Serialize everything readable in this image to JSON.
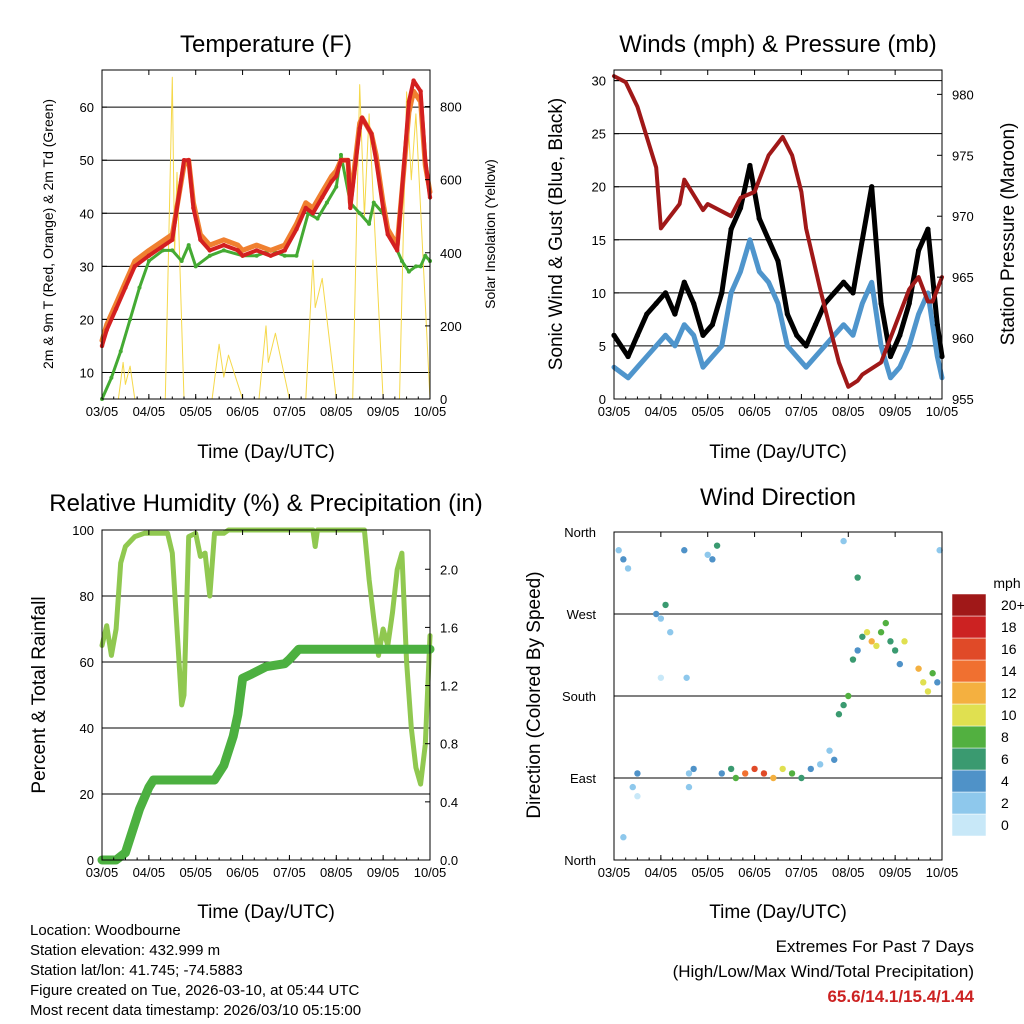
{
  "footer": {
    "location": "Location: Woodbourne",
    "elevation": "Station elevation: 432.999 m",
    "latlon": "Station lat/lon: 41.745; -74.5883",
    "created": "Figure created on Tue, 2026-03-10, at 05:44 UTC",
    "recent": "Most recent data timestamp: 2026/03/10 05:15:00",
    "extremes_title": "Extremes For Past 7 Days",
    "extremes_subtitle": "(High/Low/Max Wind/Total Precipitation)",
    "extremes_values": "65.6/14.1/15.4/1.44"
  },
  "colors": {
    "temp2m": "#d42020",
    "temp9m": "#f08030",
    "dewpoint": "#44aa33",
    "solar": "#f5d84a",
    "wind": "#4f95cc",
    "gust": "#000000",
    "pressure": "#a01818",
    "rh": "#90c850",
    "precip": "#4cb040"
  },
  "chart_data": [
    {
      "type": "line",
      "title": "Temperature (F)",
      "xlabel": "Time (Day/UTC)",
      "ylabel": "2m & 9m T (Red, Orange) & 2m Td (Green)",
      "y2label": "Solar Insolation (Yellow)",
      "xticks": [
        "03/05",
        "04/05",
        "05/05",
        "06/05",
        "07/05",
        "08/05",
        "09/05",
        "10/05"
      ],
      "xlim": [
        0,
        7
      ],
      "ylim": [
        5,
        67
      ],
      "yticks": [
        10,
        20,
        30,
        40,
        50,
        60
      ],
      "y2lim": [
        0,
        900
      ],
      "y2ticks": [
        0,
        200,
        400,
        600,
        800
      ],
      "series": [
        {
          "name": "2m T",
          "color": "#d42020",
          "x": [
            0,
            0.1,
            0.3,
            0.5,
            0.7,
            1.0,
            1.5,
            1.75,
            1.85,
            1.95,
            2.1,
            2.3,
            2.6,
            2.9,
            3.0,
            3.3,
            3.6,
            3.9,
            4.15,
            4.35,
            4.5,
            4.7,
            4.9,
            5.0,
            5.1,
            5.25,
            5.3,
            5.5,
            5.55,
            5.75,
            5.85,
            6.0,
            6.1,
            6.3,
            6.55,
            6.65,
            6.8,
            6.9,
            7.0
          ],
          "y": [
            15,
            18,
            22,
            26,
            30,
            32,
            35,
            50,
            50,
            41,
            35,
            33,
            34,
            33,
            32,
            33,
            32,
            33,
            37,
            41,
            40,
            43,
            46,
            47,
            50,
            50,
            41,
            56,
            58,
            55,
            50,
            41,
            36,
            33,
            61,
            65,
            63,
            50,
            43
          ]
        },
        {
          "name": "9m T",
          "color": "#f08030",
          "x": [
            0,
            0.1,
            0.3,
            0.5,
            0.7,
            1.0,
            1.5,
            1.75,
            1.85,
            1.95,
            2.1,
            2.3,
            2.6,
            2.9,
            3.0,
            3.3,
            3.6,
            3.9,
            4.15,
            4.35,
            4.5,
            4.7,
            4.9,
            5.0,
            5.1,
            5.25,
            5.3,
            5.5,
            5.55,
            5.75,
            5.85,
            6.0,
            6.1,
            6.3,
            6.55,
            6.65,
            6.8,
            6.9,
            7.0
          ],
          "y": [
            16,
            19,
            23,
            27,
            31,
            33,
            36,
            49,
            50,
            42,
            36,
            34,
            35,
            34,
            33,
            34,
            33,
            34,
            38,
            42,
            41,
            44,
            47,
            48,
            50,
            50,
            42,
            57,
            58,
            55,
            51,
            42,
            37,
            34,
            59,
            63,
            61,
            49,
            44
          ]
        },
        {
          "name": "2m Td",
          "color": "#44aa33",
          "x": [
            0,
            0.2,
            0.4,
            0.6,
            0.8,
            1.0,
            1.3,
            1.5,
            1.7,
            1.85,
            2.0,
            2.3,
            2.6,
            3.0,
            3.3,
            3.6,
            3.9,
            4.15,
            4.4,
            4.6,
            4.8,
            5.0,
            5.1,
            5.3,
            5.5,
            5.7,
            5.8,
            6.0,
            6.2,
            6.4,
            6.55,
            6.7,
            6.8,
            6.9,
            7.0
          ],
          "y": [
            5,
            9,
            14,
            20,
            26,
            31,
            33,
            33,
            31,
            34,
            30,
            32,
            33,
            32,
            32,
            33,
            32,
            32,
            40,
            39,
            42,
            45,
            51,
            42,
            40,
            38,
            42,
            40,
            35,
            31,
            29,
            30,
            30,
            32,
            31
          ]
        },
        {
          "name": "Solar Insolation",
          "color": "#f5d84a",
          "axis": "right",
          "x": [
            0,
            0.35,
            0.45,
            0.5,
            0.6,
            0.7,
            1.0,
            1.35,
            1.5,
            1.55,
            1.6,
            1.75,
            2.0,
            2.35,
            2.5,
            2.6,
            2.7,
            3.0,
            3.35,
            3.5,
            3.55,
            3.7,
            4.0,
            4.35,
            4.5,
            4.55,
            4.7,
            5.0,
            5.35,
            5.5,
            5.6,
            5.7,
            6.0,
            6.35,
            6.5,
            6.6,
            6.7,
            7.0
          ],
          "y": [
            0,
            0,
            100,
            40,
            90,
            0,
            0,
            0,
            880,
            400,
            620,
            0,
            0,
            0,
            150,
            60,
            120,
            0,
            0,
            200,
            100,
            180,
            0,
            0,
            380,
            250,
            330,
            0,
            0,
            860,
            500,
            780,
            0,
            0,
            840,
            600,
            780,
            0
          ]
        }
      ]
    },
    {
      "type": "line",
      "title": "Winds (mph) & Pressure (mb)",
      "xlabel": "Time (Day/UTC)",
      "ylabel": "Sonic Wind & Gust (Blue, Black)",
      "y2label": "Station Pressure (Maroon)",
      "xticks": [
        "03/05",
        "04/05",
        "05/05",
        "06/05",
        "07/05",
        "08/05",
        "09/05",
        "10/05"
      ],
      "xlim": [
        0,
        7
      ],
      "ylim": [
        0,
        31
      ],
      "yticks": [
        0,
        5,
        10,
        15,
        20,
        25,
        30
      ],
      "y2lim": [
        955,
        982
      ],
      "y2ticks": [
        955,
        960,
        965,
        970,
        975,
        980
      ],
      "series": [
        {
          "name": "Sonic Wind",
          "color": "#4f95cc",
          "x": [
            0,
            0.3,
            0.5,
            0.7,
            0.9,
            1.1,
            1.3,
            1.5,
            1.7,
            1.9,
            2.1,
            2.3,
            2.5,
            2.7,
            2.9,
            3.1,
            3.3,
            3.5,
            3.7,
            3.9,
            4.1,
            4.3,
            4.5,
            4.7,
            4.9,
            5.1,
            5.3,
            5.5,
            5.7,
            5.9,
            6.1,
            6.3,
            6.5,
            6.7,
            6.9,
            7.0
          ],
          "y": [
            3,
            2,
            3,
            4,
            5,
            6,
            5,
            7,
            6,
            3,
            4,
            5,
            10,
            12,
            15,
            12,
            11,
            9,
            5,
            4,
            3,
            4,
            5,
            6,
            7,
            6,
            9,
            11,
            5,
            2,
            3,
            5,
            8,
            10,
            4,
            2
          ]
        },
        {
          "name": "Gust",
          "color": "#000000",
          "x": [
            0,
            0.3,
            0.5,
            0.7,
            0.9,
            1.1,
            1.3,
            1.5,
            1.7,
            1.9,
            2.1,
            2.3,
            2.5,
            2.7,
            2.9,
            3.1,
            3.3,
            3.5,
            3.7,
            3.9,
            4.1,
            4.3,
            4.5,
            4.7,
            4.9,
            5.1,
            5.3,
            5.5,
            5.7,
            5.9,
            6.1,
            6.3,
            6.5,
            6.7,
            6.9,
            7.0
          ],
          "y": [
            6,
            4,
            6,
            8,
            9,
            10,
            8,
            11,
            9,
            6,
            7,
            10,
            16,
            18,
            22,
            17,
            15,
            13,
            8,
            6,
            5,
            7,
            9,
            10,
            11,
            10,
            15,
            20,
            9,
            4,
            6,
            9,
            14,
            16,
            7,
            4
          ]
        },
        {
          "name": "Station Pressure",
          "color": "#a01818",
          "axis": "right",
          "x": [
            0,
            0.25,
            0.5,
            0.9,
            1.0,
            1.4,
            1.5,
            1.9,
            2.0,
            2.5,
            2.7,
            3.0,
            3.3,
            3.6,
            3.8,
            4.0,
            4.1,
            4.4,
            4.6,
            4.8,
            5.0,
            5.2,
            5.3,
            5.7,
            6.0,
            6.3,
            6.5,
            6.7,
            6.8,
            6.9,
            7.0
          ],
          "y": [
            981.5,
            981,
            979,
            974,
            969,
            971,
            973,
            970.5,
            971,
            970,
            971.5,
            972,
            975,
            976.5,
            975,
            972,
            969,
            964,
            961,
            958,
            956,
            956.5,
            957,
            958,
            961,
            964,
            965,
            963,
            963,
            964,
            965
          ]
        }
      ]
    },
    {
      "type": "line",
      "title": "Relative Humidity (%) & Precipitation (in)",
      "xlabel": "Time (Day/UTC)",
      "ylabel": "Percent & Total Rainfall",
      "xticks": [
        "03/05",
        "04/05",
        "05/05",
        "06/05",
        "07/05",
        "08/05",
        "09/05",
        "10/05"
      ],
      "xlim": [
        0,
        7
      ],
      "ylim": [
        0,
        100
      ],
      "yticks": [
        0,
        20,
        40,
        60,
        80,
        100
      ],
      "y2lim": [
        0,
        2.27
      ],
      "y2ticks": [
        0.0,
        0.4,
        0.8,
        1.2,
        1.6,
        2.0
      ],
      "series": [
        {
          "name": "Relative Humidity",
          "color": "#90c850",
          "x": [
            0,
            0.1,
            0.2,
            0.3,
            0.4,
            0.5,
            0.7,
            0.9,
            1.1,
            1.4,
            1.5,
            1.6,
            1.7,
            1.75,
            1.85,
            2.0,
            2.1,
            2.2,
            2.3,
            2.4,
            2.5,
            2.6,
            2.7,
            3.0,
            3.5,
            4.0,
            4.5,
            4.55,
            4.6,
            5.5,
            5.6,
            5.7,
            5.8,
            5.9,
            6.0,
            6.1,
            6.2,
            6.3,
            6.4,
            6.5,
            6.6,
            6.7,
            6.8,
            6.9,
            7.0
          ],
          "y": [
            65,
            71,
            62,
            70,
            90,
            95,
            98,
            99,
            99,
            99,
            93,
            70,
            47,
            50,
            98,
            99,
            92,
            93,
            80,
            99,
            99,
            99,
            100,
            100,
            100,
            100,
            100,
            95,
            100,
            100,
            100,
            85,
            73,
            62,
            70,
            65,
            75,
            88,
            93,
            60,
            40,
            28,
            23,
            35,
            68
          ]
        },
        {
          "name": "Total Precipitation",
          "color": "#4cb040",
          "axis": "right",
          "x": [
            0,
            0.3,
            0.5,
            0.8,
            1.0,
            1.1,
            1.3,
            2.4,
            2.6,
            2.8,
            2.9,
            3.0,
            3.2,
            3.5,
            3.9,
            4.0,
            4.2,
            5.0,
            7.0
          ],
          "y": [
            0.0,
            0.0,
            0.05,
            0.35,
            0.5,
            0.55,
            0.55,
            0.55,
            0.65,
            0.85,
            1.0,
            1.25,
            1.28,
            1.33,
            1.35,
            1.38,
            1.45,
            1.45,
            1.45
          ]
        }
      ]
    },
    {
      "type": "scatter",
      "title": "Wind Direction",
      "xlabel": "Time (Day/UTC)",
      "ylabel": "Direction (Colored By Speed)",
      "xticks": [
        "03/05",
        "04/05",
        "05/05",
        "06/05",
        "07/05",
        "08/05",
        "09/05",
        "10/05"
      ],
      "xlim": [
        0,
        7
      ],
      "ylim": [
        0,
        360
      ],
      "yticks": [
        "North",
        "East",
        "South",
        "West",
        "North"
      ],
      "colorbar": {
        "label": "mph",
        "levels": [
          "0",
          "2",
          "4",
          "6",
          "8",
          "10",
          "12",
          "14",
          "16",
          "18",
          "20+"
        ],
        "colors": [
          "#c8e8f8",
          "#8ec8ec",
          "#4f92c8",
          "#3a9a70",
          "#52b040",
          "#e0e050",
          "#f4b040",
          "#f07030",
          "#e04a28",
          "#cc2222",
          "#a01818"
        ]
      },
      "points": {
        "x": [
          0.1,
          0.2,
          0.3,
          0.2,
          0.4,
          0.5,
          0.5,
          0.9,
          1.0,
          1.1,
          1.2,
          1.0,
          1.5,
          1.6,
          1.7,
          1.6,
          1.55,
          2.0,
          2.1,
          2.2,
          2.3,
          2.5,
          2.6,
          2.8,
          3.0,
          3.2,
          3.4,
          3.6,
          3.8,
          4.0,
          4.2,
          4.4,
          4.6,
          4.7,
          4.8,
          4.9,
          5.0,
          5.1,
          5.2,
          5.3,
          5.4,
          5.5,
          5.6,
          5.7,
          5.8,
          5.9,
          6.0,
          6.1,
          6.2,
          6.5,
          6.6,
          6.7,
          6.8,
          6.9,
          6.95,
          4.9,
          5.2
        ],
        "y": [
          340,
          330,
          320,
          25,
          80,
          95,
          70,
          270,
          265,
          280,
          250,
          200,
          340,
          80,
          100,
          95,
          200,
          335,
          330,
          345,
          95,
          100,
          90,
          95,
          100,
          95,
          90,
          100,
          95,
          90,
          100,
          105,
          120,
          110,
          160,
          170,
          180,
          220,
          230,
          245,
          250,
          240,
          235,
          250,
          260,
          240,
          230,
          215,
          240,
          210,
          195,
          185,
          205,
          195,
          340,
          350,
          310
        ],
        "speed": [
          2,
          4,
          3,
          2,
          3,
          4,
          1,
          4,
          3,
          6,
          2,
          1,
          4,
          2,
          5,
          3,
          2,
          3,
          4,
          6,
          5,
          6,
          8,
          14,
          17,
          16,
          12,
          10,
          9,
          6,
          4,
          2,
          3,
          5,
          6,
          7,
          8,
          6,
          5,
          7,
          10,
          12,
          11,
          9,
          8,
          7,
          6,
          5,
          10,
          12,
          11,
          10,
          9,
          4,
          3,
          2,
          6
        ]
      }
    }
  ]
}
